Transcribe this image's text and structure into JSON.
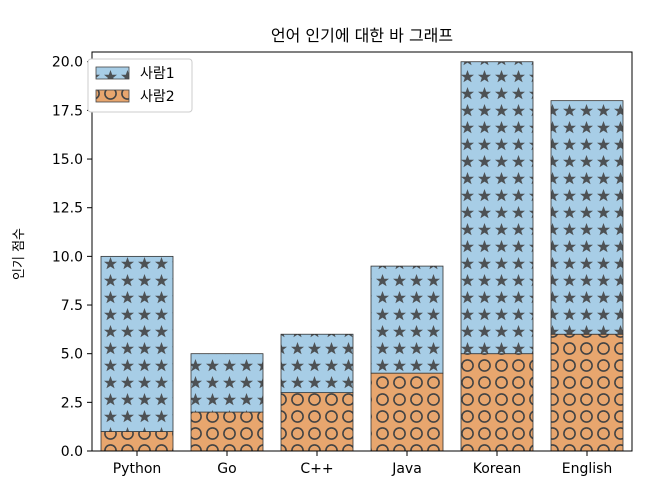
{
  "chart_data": {
    "type": "bar",
    "stacked": true,
    "title": "언어 인기에 대한 바 그래프",
    "xlabel": "",
    "ylabel": "인기 점수",
    "categories": [
      "Python",
      "Go",
      "C++",
      "Java",
      "Korean",
      "English"
    ],
    "series": [
      {
        "name": "사람1",
        "values": [
          9,
          3,
          3,
          5.5,
          15,
          12
        ],
        "color": "#a7cde6",
        "hatch": "stars"
      },
      {
        "name": "사람2",
        "values": [
          1,
          2,
          3,
          4,
          5,
          6
        ],
        "color": "#e8a66e",
        "hatch": "circles"
      }
    ],
    "stack_order": [
      "사람2",
      "사람1"
    ],
    "ylim": [
      0,
      20.5
    ],
    "yticks": [
      0.0,
      2.5,
      5.0,
      7.5,
      10.0,
      12.5,
      15.0,
      17.5,
      20.0
    ],
    "ytick_labels": [
      "0.0",
      "2.5",
      "5.0",
      "7.5",
      "10.0",
      "12.5",
      "15.0",
      "17.5",
      "20.0"
    ],
    "grid": false,
    "legend_position": "top-left"
  }
}
